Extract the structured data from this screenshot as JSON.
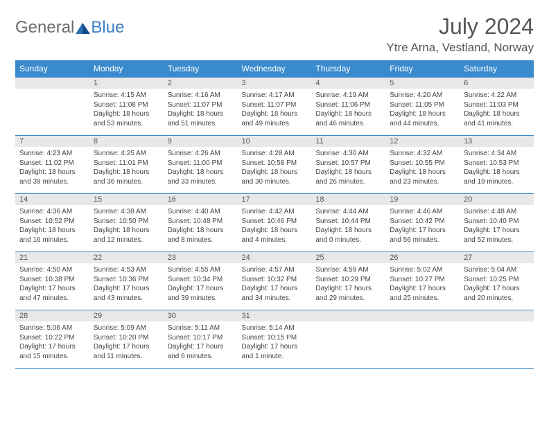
{
  "logo": {
    "part1": "General",
    "part2": "Blue"
  },
  "title": "July 2024",
  "location": "Ytre Arna, Vestland, Norway",
  "colors": {
    "accent": "#3a8bce",
    "logo_blue": "#3a7ec1",
    "text": "#444444",
    "daybg": "#e8e8e8"
  },
  "weekdays": [
    "Sunday",
    "Monday",
    "Tuesday",
    "Wednesday",
    "Thursday",
    "Friday",
    "Saturday"
  ],
  "weeks": [
    [
      {
        "n": "",
        "details": ""
      },
      {
        "n": "1",
        "details": "Sunrise: 4:15 AM\nSunset: 11:08 PM\nDaylight: 18 hours and 53 minutes."
      },
      {
        "n": "2",
        "details": "Sunrise: 4:16 AM\nSunset: 11:07 PM\nDaylight: 18 hours and 51 minutes."
      },
      {
        "n": "3",
        "details": "Sunrise: 4:17 AM\nSunset: 11:07 PM\nDaylight: 18 hours and 49 minutes."
      },
      {
        "n": "4",
        "details": "Sunrise: 4:19 AM\nSunset: 11:06 PM\nDaylight: 18 hours and 46 minutes."
      },
      {
        "n": "5",
        "details": "Sunrise: 4:20 AM\nSunset: 11:05 PM\nDaylight: 18 hours and 44 minutes."
      },
      {
        "n": "6",
        "details": "Sunrise: 4:22 AM\nSunset: 11:03 PM\nDaylight: 18 hours and 41 minutes."
      }
    ],
    [
      {
        "n": "7",
        "details": "Sunrise: 4:23 AM\nSunset: 11:02 PM\nDaylight: 18 hours and 39 minutes."
      },
      {
        "n": "8",
        "details": "Sunrise: 4:25 AM\nSunset: 11:01 PM\nDaylight: 18 hours and 36 minutes."
      },
      {
        "n": "9",
        "details": "Sunrise: 4:26 AM\nSunset: 11:00 PM\nDaylight: 18 hours and 33 minutes."
      },
      {
        "n": "10",
        "details": "Sunrise: 4:28 AM\nSunset: 10:58 PM\nDaylight: 18 hours and 30 minutes."
      },
      {
        "n": "11",
        "details": "Sunrise: 4:30 AM\nSunset: 10:57 PM\nDaylight: 18 hours and 26 minutes."
      },
      {
        "n": "12",
        "details": "Sunrise: 4:32 AM\nSunset: 10:55 PM\nDaylight: 18 hours and 23 minutes."
      },
      {
        "n": "13",
        "details": "Sunrise: 4:34 AM\nSunset: 10:53 PM\nDaylight: 18 hours and 19 minutes."
      }
    ],
    [
      {
        "n": "14",
        "details": "Sunrise: 4:36 AM\nSunset: 10:52 PM\nDaylight: 18 hours and 16 minutes."
      },
      {
        "n": "15",
        "details": "Sunrise: 4:38 AM\nSunset: 10:50 PM\nDaylight: 18 hours and 12 minutes."
      },
      {
        "n": "16",
        "details": "Sunrise: 4:40 AM\nSunset: 10:48 PM\nDaylight: 18 hours and 8 minutes."
      },
      {
        "n": "17",
        "details": "Sunrise: 4:42 AM\nSunset: 10:46 PM\nDaylight: 18 hours and 4 minutes."
      },
      {
        "n": "18",
        "details": "Sunrise: 4:44 AM\nSunset: 10:44 PM\nDaylight: 18 hours and 0 minutes."
      },
      {
        "n": "19",
        "details": "Sunrise: 4:46 AM\nSunset: 10:42 PM\nDaylight: 17 hours and 56 minutes."
      },
      {
        "n": "20",
        "details": "Sunrise: 4:48 AM\nSunset: 10:40 PM\nDaylight: 17 hours and 52 minutes."
      }
    ],
    [
      {
        "n": "21",
        "details": "Sunrise: 4:50 AM\nSunset: 10:38 PM\nDaylight: 17 hours and 47 minutes."
      },
      {
        "n": "22",
        "details": "Sunrise: 4:53 AM\nSunset: 10:36 PM\nDaylight: 17 hours and 43 minutes."
      },
      {
        "n": "23",
        "details": "Sunrise: 4:55 AM\nSunset: 10:34 PM\nDaylight: 17 hours and 39 minutes."
      },
      {
        "n": "24",
        "details": "Sunrise: 4:57 AM\nSunset: 10:32 PM\nDaylight: 17 hours and 34 minutes."
      },
      {
        "n": "25",
        "details": "Sunrise: 4:59 AM\nSunset: 10:29 PM\nDaylight: 17 hours and 29 minutes."
      },
      {
        "n": "26",
        "details": "Sunrise: 5:02 AM\nSunset: 10:27 PM\nDaylight: 17 hours and 25 minutes."
      },
      {
        "n": "27",
        "details": "Sunrise: 5:04 AM\nSunset: 10:25 PM\nDaylight: 17 hours and 20 minutes."
      }
    ],
    [
      {
        "n": "28",
        "details": "Sunrise: 5:06 AM\nSunset: 10:22 PM\nDaylight: 17 hours and 15 minutes."
      },
      {
        "n": "29",
        "details": "Sunrise: 5:09 AM\nSunset: 10:20 PM\nDaylight: 17 hours and 11 minutes."
      },
      {
        "n": "30",
        "details": "Sunrise: 5:11 AM\nSunset: 10:17 PM\nDaylight: 17 hours and 6 minutes."
      },
      {
        "n": "31",
        "details": "Sunrise: 5:14 AM\nSunset: 10:15 PM\nDaylight: 17 hours and 1 minute."
      },
      {
        "n": "",
        "details": ""
      },
      {
        "n": "",
        "details": ""
      },
      {
        "n": "",
        "details": ""
      }
    ]
  ]
}
